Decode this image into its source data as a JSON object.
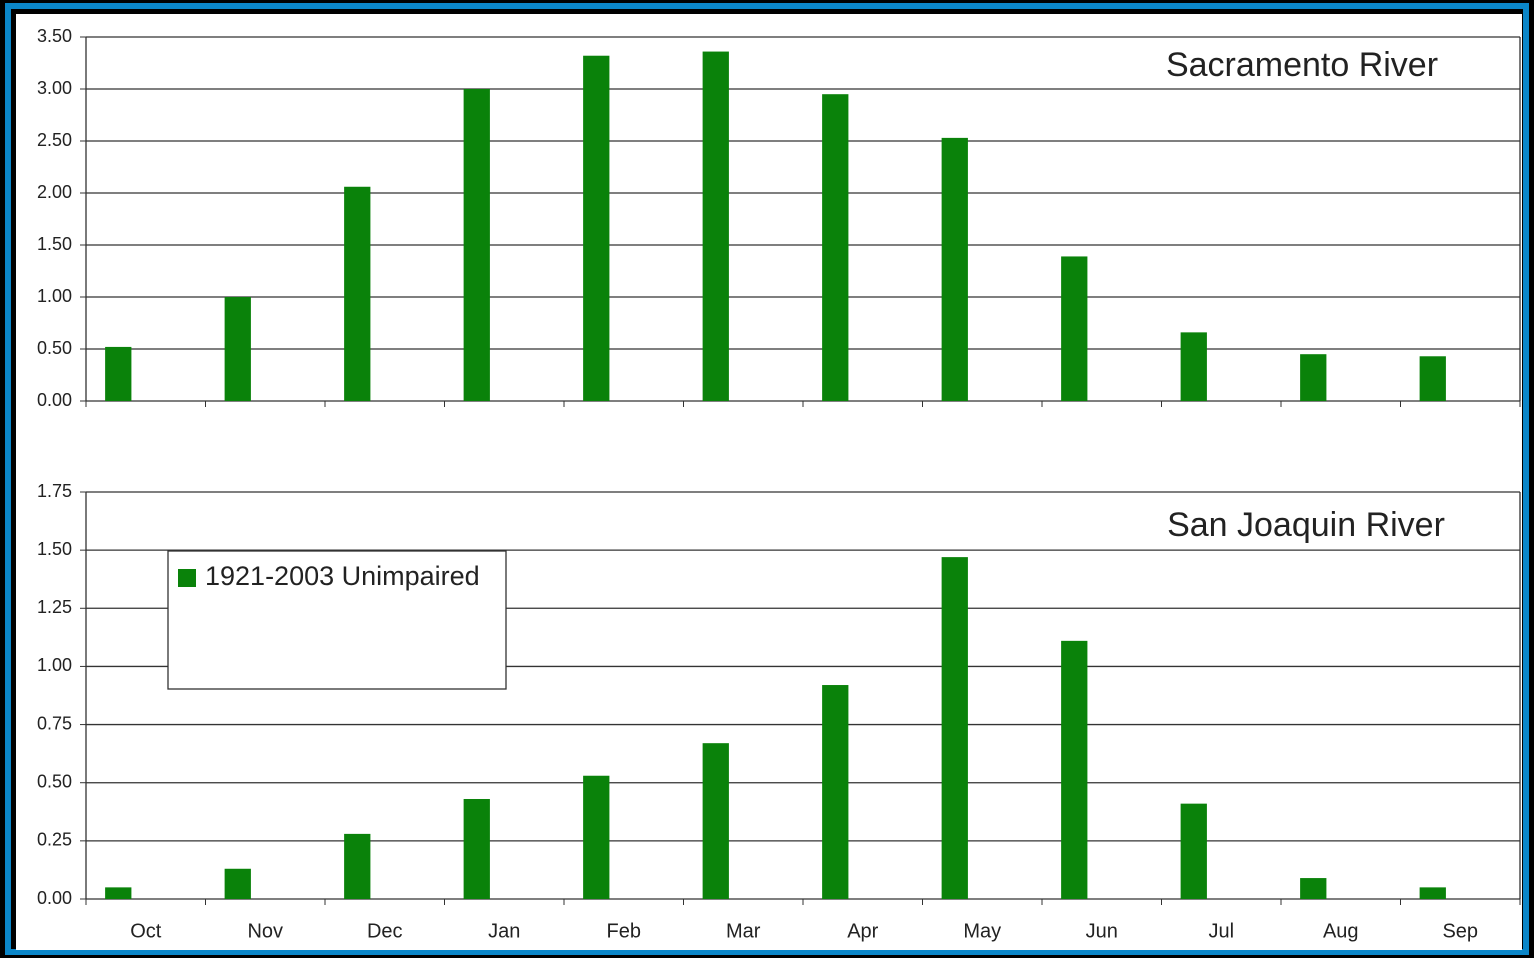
{
  "chart_data": [
    {
      "type": "bar",
      "title": "Sacramento River",
      "series": [
        {
          "color": "#0a820a",
          "values": [
            0.52,
            1.0,
            2.06,
            3.0,
            3.32,
            3.36,
            2.95,
            2.53,
            1.39,
            0.66,
            0.45,
            0.43
          ]
        }
      ],
      "ylim": [
        0,
        3.5
      ],
      "yticks": [
        {
          "value": 0,
          "label": "0.00"
        },
        {
          "value": 0.5,
          "label": "0.50"
        },
        {
          "value": 1,
          "label": "1.00"
        },
        {
          "value": 1.5,
          "label": "1.50"
        },
        {
          "value": 2,
          "label": "2.00"
        },
        {
          "value": 2.5,
          "label": "2.50"
        },
        {
          "value": 3,
          "label": "3.00"
        },
        {
          "value": 3.5,
          "label": "3.50"
        }
      ],
      "grid": true
    },
    {
      "type": "bar",
      "title": "San Joaquin River",
      "categories": [
        "Oct",
        "Nov",
        "Dec",
        "Jan",
        "Feb",
        "Mar",
        "Apr",
        "May",
        "Jun",
        "Jul",
        "Aug",
        "Sep"
      ],
      "series": [
        {
          "name": "1921-2003 Unimpaired",
          "color": "#0a820a",
          "values": [
            0.05,
            0.13,
            0.28,
            0.43,
            0.53,
            0.67,
            0.92,
            1.47,
            1.11,
            0.41,
            0.09,
            0.05
          ]
        }
      ],
      "ylim": [
        0,
        1.75
      ],
      "yticks": [
        {
          "value": 0,
          "label": "0.00"
        },
        0.25,
        {
          "value": 0.5,
          "label": "0.50"
        },
        0.75,
        {
          "value": 1,
          "label": "1.00"
        },
        1.25,
        {
          "value": 1.5,
          "label": "1.50"
        },
        1.75
      ],
      "grid": true,
      "legend": "upper left"
    }
  ]
}
